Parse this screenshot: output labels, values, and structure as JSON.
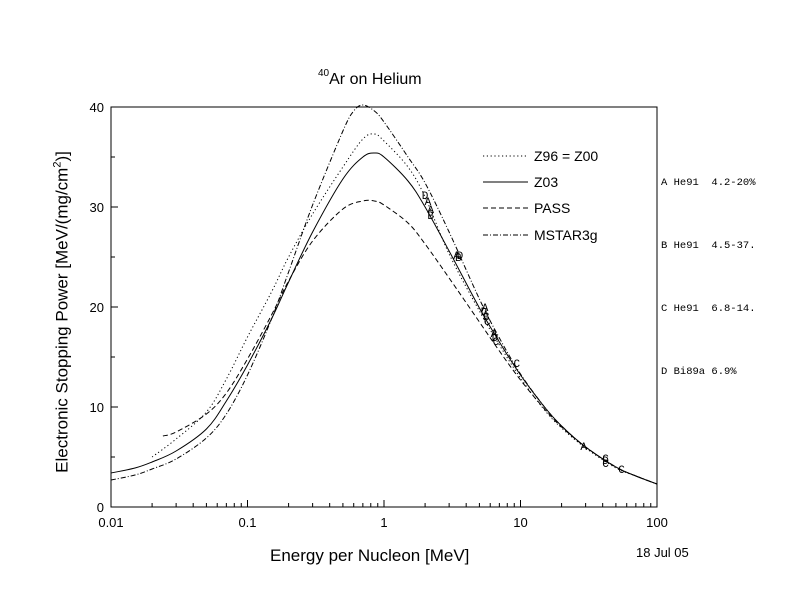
{
  "chart_data": {
    "type": "line",
    "title_sup": "40",
    "title_main": "Ar on Helium",
    "xlabel": "Energy per Nucleon [MeV]",
    "ylabel_pre": "Electronic Stopping Power [MeV/(mg/cm",
    "ylabel_sup": "2",
    "ylabel_post": ")]",
    "x_scale": "log",
    "xlim": [
      0.01,
      100
    ],
    "ylim": [
      0,
      40
    ],
    "x_ticks": [
      0.01,
      0.1,
      1,
      10,
      100
    ],
    "x_tick_labels": [
      "0.01",
      "0.1",
      "1",
      "10",
      "100"
    ],
    "y_ticks": [
      0,
      10,
      20,
      30,
      40
    ],
    "y_tick_labels": [
      "0",
      "10",
      "20",
      "30",
      "40"
    ],
    "grid": false,
    "legend_position": "top-right",
    "date_label": "18 Jul 05",
    "series": [
      {
        "name": "Z96 = Z00",
        "style": "dotted",
        "points": [
          [
            0.02,
            5.0
          ],
          [
            0.03,
            6.8
          ],
          [
            0.05,
            9.5
          ],
          [
            0.07,
            12.8
          ],
          [
            0.1,
            17.0
          ],
          [
            0.15,
            21.5
          ],
          [
            0.2,
            25.0
          ],
          [
            0.3,
            29.3
          ],
          [
            0.5,
            34.0
          ],
          [
            0.7,
            36.8
          ],
          [
            0.85,
            37.3
          ],
          [
            1,
            36.6
          ],
          [
            1.5,
            34.0
          ],
          [
            2,
            31.0
          ],
          [
            3,
            25.3
          ],
          [
            5,
            19.6
          ],
          [
            7,
            16.2
          ],
          [
            10,
            12.9
          ],
          [
            15,
            9.7
          ],
          [
            20,
            7.9
          ],
          [
            30,
            5.9
          ],
          [
            50,
            3.9
          ],
          [
            70,
            3.1
          ],
          [
            100,
            2.3
          ]
        ]
      },
      {
        "name": "Z03",
        "style": "solid",
        "points": [
          [
            0.01,
            3.4
          ],
          [
            0.015,
            3.9
          ],
          [
            0.02,
            4.5
          ],
          [
            0.03,
            5.6
          ],
          [
            0.05,
            7.8
          ],
          [
            0.07,
            10.6
          ],
          [
            0.1,
            14.2
          ],
          [
            0.15,
            18.8
          ],
          [
            0.2,
            22.5
          ],
          [
            0.3,
            27.5
          ],
          [
            0.5,
            32.8
          ],
          [
            0.7,
            35.0
          ],
          [
            0.85,
            35.4
          ],
          [
            1,
            35.0
          ],
          [
            1.5,
            32.6
          ],
          [
            2,
            30.0
          ],
          [
            3,
            25.6
          ],
          [
            5,
            19.9
          ],
          [
            7,
            16.5
          ],
          [
            10,
            13.2
          ],
          [
            15,
            10.0
          ],
          [
            20,
            8.1
          ],
          [
            30,
            6.0
          ],
          [
            50,
            4.0
          ],
          [
            70,
            3.1
          ],
          [
            100,
            2.3
          ]
        ]
      },
      {
        "name": "PASS",
        "style": "dashed",
        "points": [
          [
            0.024,
            7.1
          ],
          [
            0.03,
            7.5
          ],
          [
            0.05,
            9.3
          ],
          [
            0.07,
            11.4
          ],
          [
            0.1,
            14.8
          ],
          [
            0.15,
            19.2
          ],
          [
            0.2,
            22.6
          ],
          [
            0.3,
            26.6
          ],
          [
            0.5,
            29.8
          ],
          [
            0.7,
            30.6
          ],
          [
            0.85,
            30.6
          ],
          [
            1,
            30.2
          ],
          [
            1.5,
            28.4
          ],
          [
            2,
            26.3
          ],
          [
            3,
            22.9
          ],
          [
            5,
            18.5
          ],
          [
            7,
            15.6
          ],
          [
            10,
            12.7
          ],
          [
            15,
            9.8
          ],
          [
            20,
            8.0
          ],
          [
            30,
            6.0
          ],
          [
            50,
            4.0
          ],
          [
            70,
            3.1
          ],
          [
            100,
            2.3
          ]
        ]
      },
      {
        "name": "MSTAR3g",
        "style": "dash-dot",
        "points": [
          [
            0.01,
            2.7
          ],
          [
            0.015,
            3.2
          ],
          [
            0.02,
            3.8
          ],
          [
            0.03,
            4.8
          ],
          [
            0.05,
            6.9
          ],
          [
            0.07,
            9.3
          ],
          [
            0.1,
            13.2
          ],
          [
            0.15,
            18.8
          ],
          [
            0.2,
            23.5
          ],
          [
            0.3,
            30.2
          ],
          [
            0.5,
            37.6
          ],
          [
            0.6,
            39.6
          ],
          [
            0.7,
            40.2
          ],
          [
            0.85,
            39.6
          ],
          [
            1,
            38.5
          ],
          [
            1.5,
            35.0
          ],
          [
            2,
            32.4
          ],
          [
            3,
            27.5
          ],
          [
            5,
            20.8
          ],
          [
            7,
            16.9
          ],
          [
            10,
            13.3
          ],
          [
            15,
            10.0
          ],
          [
            20,
            8.1
          ],
          [
            30,
            6.0
          ],
          [
            50,
            4.0
          ],
          [
            70,
            3.1
          ],
          [
            100,
            2.3
          ]
        ]
      }
    ],
    "measurements": [
      {
        "marker": "A",
        "x": 2.1,
        "y": 30.6
      },
      {
        "marker": "A",
        "x": 2.2,
        "y": 29.8
      },
      {
        "marker": "B",
        "x": 2.2,
        "y": 29.2
      },
      {
        "marker": "D",
        "x": 2.0,
        "y": 31.2
      },
      {
        "marker": "A",
        "x": 3.4,
        "y": 25.2
      },
      {
        "marker": "B",
        "x": 3.5,
        "y": 25.0
      },
      {
        "marker": "D",
        "x": 3.6,
        "y": 25.2
      },
      {
        "marker": "A",
        "x": 5.5,
        "y": 20.0
      },
      {
        "marker": "B",
        "x": 5.6,
        "y": 19.1
      },
      {
        "marker": "C",
        "x": 5.7,
        "y": 18.6
      },
      {
        "marker": "D",
        "x": 5.4,
        "y": 19.6
      },
      {
        "marker": "A",
        "x": 6.4,
        "y": 17.4
      },
      {
        "marker": "C",
        "x": 6.6,
        "y": 16.6
      },
      {
        "marker": "D",
        "x": 6.5,
        "y": 17.0
      },
      {
        "marker": "C",
        "x": 9.4,
        "y": 14.4
      },
      {
        "marker": "A",
        "x": 29,
        "y": 6.1
      },
      {
        "marker": "C",
        "x": 42,
        "y": 4.9
      },
      {
        "marker": "C",
        "x": 42,
        "y": 4.4
      },
      {
        "marker": "D",
        "x": 42,
        "y": 4.7
      },
      {
        "marker": "C",
        "x": 55,
        "y": 3.8
      }
    ],
    "datasets": [
      "A He91  4.2-20%",
      "B He91  4.5-37.",
      "C He91  6.8-14.",
      "D Bi89a 6.9%"
    ]
  }
}
